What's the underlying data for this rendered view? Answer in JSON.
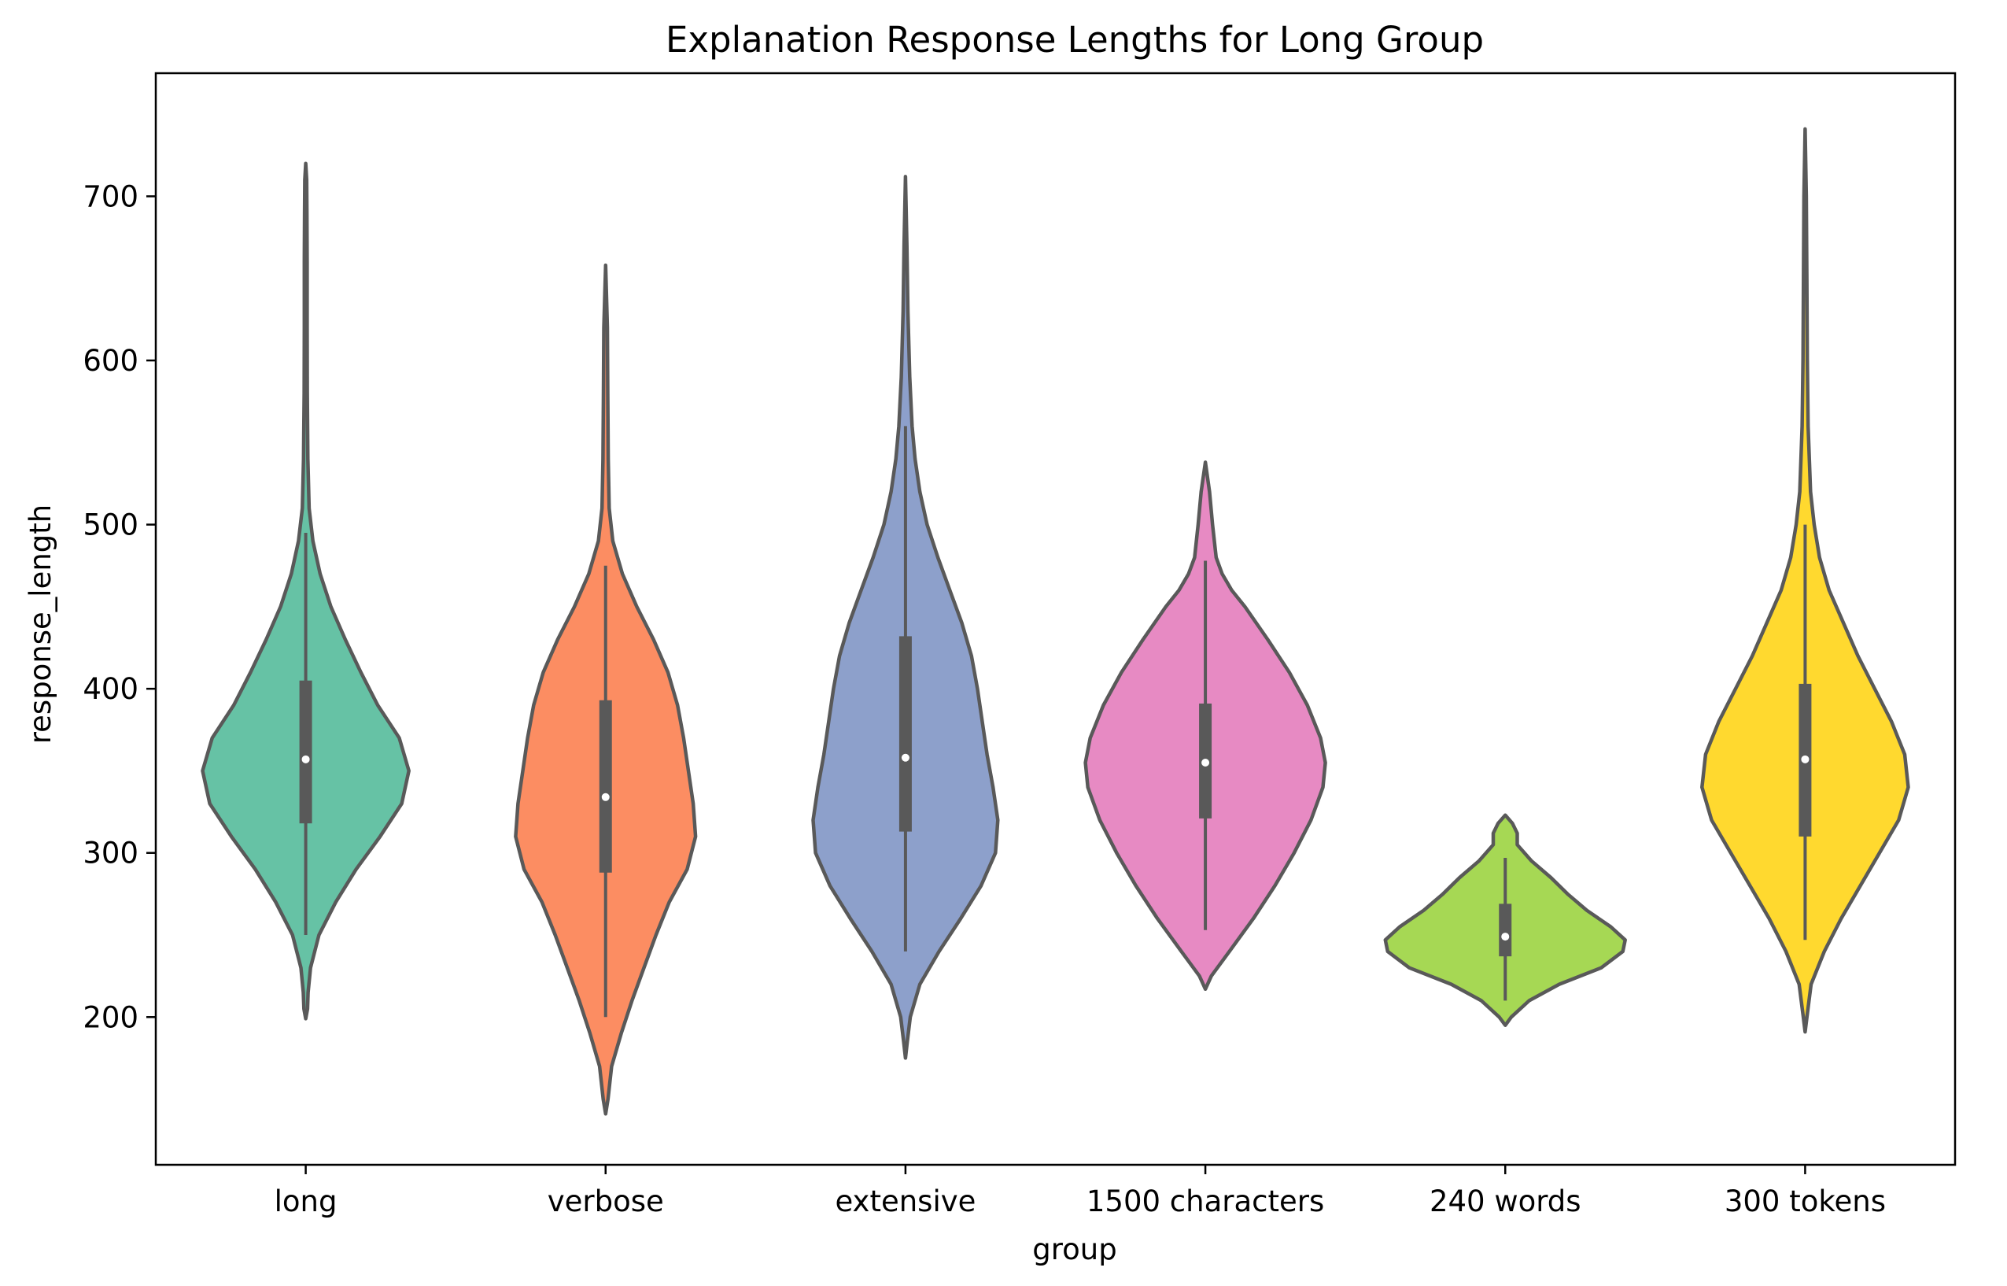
{
  "chart_data": {
    "type": "violin",
    "title": "Explanation Response Lengths for Long Group",
    "xlabel": "group",
    "ylabel": "response_length",
    "ylim": [
      110,
      775
    ],
    "yticks": [
      200,
      300,
      400,
      500,
      600,
      700
    ],
    "categories": [
      "long",
      "verbose",
      "extensive",
      "1500 characters",
      "240 words",
      "300 tokens"
    ],
    "colors": {
      "long": "#66c2a5",
      "verbose": "#fc8d62",
      "extensive": "#8da0cb",
      "1500 characters": "#e78ac3",
      "240 words": "#a6d854",
      "300 tokens": "#ffd92f",
      "outline": "#595959"
    },
    "series": [
      {
        "name": "long",
        "min": 199,
        "q1": 318,
        "median": 357,
        "q3": 405,
        "max": 720,
        "whisker_low": 250,
        "whisker_high": 495,
        "density": [
          [
            199,
            0.0
          ],
          [
            205,
            0.015
          ],
          [
            215,
            0.02
          ],
          [
            230,
            0.04
          ],
          [
            250,
            0.11
          ],
          [
            270,
            0.25
          ],
          [
            290,
            0.42
          ],
          [
            310,
            0.62
          ],
          [
            330,
            0.8
          ],
          [
            350,
            0.86
          ],
          [
            370,
            0.78
          ],
          [
            390,
            0.6
          ],
          [
            410,
            0.46
          ],
          [
            430,
            0.33
          ],
          [
            450,
            0.21
          ],
          [
            470,
            0.12
          ],
          [
            490,
            0.06
          ],
          [
            510,
            0.028
          ],
          [
            540,
            0.018
          ],
          [
            580,
            0.013
          ],
          [
            620,
            0.012
          ],
          [
            660,
            0.012
          ],
          [
            690,
            0.01
          ],
          [
            710,
            0.008
          ],
          [
            720,
            0.0
          ]
        ]
      },
      {
        "name": "verbose",
        "min": 141,
        "q1": 288,
        "median": 334,
        "q3": 393,
        "max": 658,
        "whisker_low": 200,
        "whisker_high": 475,
        "density": [
          [
            141,
            0.0
          ],
          [
            150,
            0.02
          ],
          [
            170,
            0.05
          ],
          [
            190,
            0.13
          ],
          [
            210,
            0.22
          ],
          [
            230,
            0.32
          ],
          [
            250,
            0.42
          ],
          [
            270,
            0.53
          ],
          [
            290,
            0.68
          ],
          [
            310,
            0.75
          ],
          [
            330,
            0.73
          ],
          [
            350,
            0.69
          ],
          [
            370,
            0.65
          ],
          [
            390,
            0.6
          ],
          [
            410,
            0.52
          ],
          [
            430,
            0.4
          ],
          [
            450,
            0.26
          ],
          [
            470,
            0.14
          ],
          [
            490,
            0.06
          ],
          [
            510,
            0.03
          ],
          [
            540,
            0.022
          ],
          [
            580,
            0.018
          ],
          [
            620,
            0.015
          ],
          [
            658,
            0.0
          ]
        ]
      },
      {
        "name": "extensive",
        "min": 175,
        "q1": 313,
        "median": 358,
        "q3": 432,
        "max": 712,
        "whisker_low": 240,
        "whisker_high": 560,
        "density": [
          [
            175,
            0.0
          ],
          [
            185,
            0.015
          ],
          [
            200,
            0.04
          ],
          [
            220,
            0.12
          ],
          [
            240,
            0.28
          ],
          [
            260,
            0.46
          ],
          [
            280,
            0.63
          ],
          [
            300,
            0.75
          ],
          [
            320,
            0.77
          ],
          [
            340,
            0.73
          ],
          [
            360,
            0.68
          ],
          [
            380,
            0.64
          ],
          [
            400,
            0.6
          ],
          [
            420,
            0.55
          ],
          [
            440,
            0.47
          ],
          [
            460,
            0.37
          ],
          [
            480,
            0.27
          ],
          [
            500,
            0.18
          ],
          [
            520,
            0.12
          ],
          [
            540,
            0.08
          ],
          [
            560,
            0.055
          ],
          [
            590,
            0.035
          ],
          [
            630,
            0.02
          ],
          [
            670,
            0.012
          ],
          [
            712,
            0.0
          ]
        ]
      },
      {
        "name": "1500 characters",
        "min": 217,
        "q1": 321,
        "median": 355,
        "q3": 391,
        "max": 538,
        "whisker_low": 253,
        "whisker_high": 478,
        "density": [
          [
            217,
            0.0
          ],
          [
            225,
            0.05
          ],
          [
            240,
            0.2
          ],
          [
            260,
            0.4
          ],
          [
            280,
            0.58
          ],
          [
            300,
            0.74
          ],
          [
            320,
            0.88
          ],
          [
            340,
            0.98
          ],
          [
            355,
            1.0
          ],
          [
            370,
            0.96
          ],
          [
            390,
            0.85
          ],
          [
            410,
            0.7
          ],
          [
            430,
            0.52
          ],
          [
            450,
            0.33
          ],
          [
            460,
            0.22
          ],
          [
            470,
            0.14
          ],
          [
            480,
            0.09
          ],
          [
            500,
            0.06
          ],
          [
            520,
            0.035
          ],
          [
            538,
            0.0
          ]
        ]
      },
      {
        "name": "240 words",
        "min": 195,
        "q1": 237,
        "median": 249,
        "q3": 269,
        "max": 323,
        "whisker_low": 210,
        "whisker_high": 297,
        "density": [
          [
            195,
            0.0
          ],
          [
            200,
            0.05
          ],
          [
            210,
            0.2
          ],
          [
            220,
            0.45
          ],
          [
            230,
            0.8
          ],
          [
            240,
            0.98
          ],
          [
            247,
            1.0
          ],
          [
            255,
            0.88
          ],
          [
            265,
            0.68
          ],
          [
            275,
            0.52
          ],
          [
            285,
            0.38
          ],
          [
            295,
            0.22
          ],
          [
            305,
            0.1
          ],
          [
            312,
            0.1
          ],
          [
            318,
            0.06
          ],
          [
            323,
            0.0
          ]
        ]
      },
      {
        "name": "300 tokens",
        "min": 191,
        "q1": 310,
        "median": 357,
        "q3": 403,
        "max": 741,
        "whisker_low": 247,
        "whisker_high": 500,
        "density": [
          [
            191,
            0.0
          ],
          [
            200,
            0.015
          ],
          [
            220,
            0.05
          ],
          [
            240,
            0.16
          ],
          [
            260,
            0.3
          ],
          [
            280,
            0.46
          ],
          [
            300,
            0.62
          ],
          [
            320,
            0.78
          ],
          [
            340,
            0.86
          ],
          [
            360,
            0.83
          ],
          [
            380,
            0.72
          ],
          [
            400,
            0.58
          ],
          [
            420,
            0.44
          ],
          [
            440,
            0.32
          ],
          [
            460,
            0.2
          ],
          [
            480,
            0.12
          ],
          [
            500,
            0.075
          ],
          [
            520,
            0.045
          ],
          [
            560,
            0.025
          ],
          [
            600,
            0.018
          ],
          [
            650,
            0.014
          ],
          [
            700,
            0.01
          ],
          [
            741,
            0.0
          ]
        ]
      }
    ],
    "grid": false,
    "legend": "none"
  }
}
